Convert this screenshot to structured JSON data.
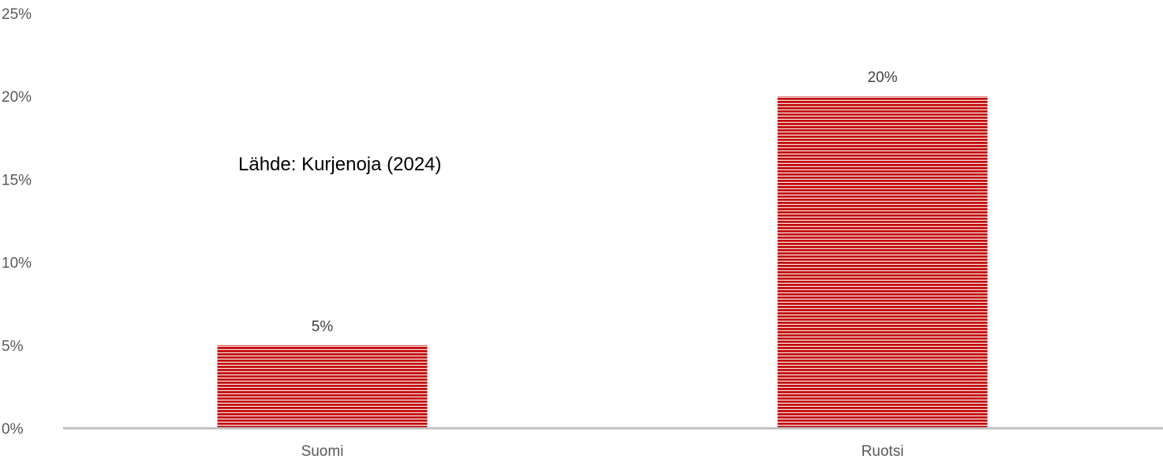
{
  "chart_data": {
    "type": "bar",
    "categories": [
      "Suomi",
      "Ruotsi"
    ],
    "values": [
      5,
      20
    ],
    "value_labels": [
      "5%",
      "20%"
    ],
    "ylim": [
      0,
      25
    ],
    "yticks": [
      0,
      5,
      10,
      15,
      20,
      25
    ],
    "ytick_labels": [
      "0%",
      "5%",
      "10%",
      "15%",
      "20%",
      "25%"
    ],
    "grid": false,
    "bar_color": "#c00000",
    "stripe_color": "#ffffff",
    "axis_color": "#bfbfbf",
    "annotation": "Lähde: Kurjenoja (2024)"
  }
}
